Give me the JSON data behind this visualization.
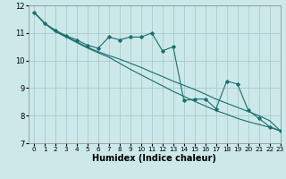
{
  "bg_color": "#cce8e8",
  "grid_color": "#aacccc",
  "line_color": "#1a6e6e",
  "xlabel": "Humidex (Indice chaleur)",
  "xlabel_fontsize": 7,
  "tick_fontsize": 6,
  "ylim": [
    7,
    12
  ],
  "xlim": [
    -0.5,
    23
  ],
  "yticks": [
    7,
    8,
    9,
    10,
    11,
    12
  ],
  "xticks": [
    0,
    1,
    2,
    3,
    4,
    5,
    6,
    7,
    8,
    9,
    10,
    11,
    12,
    13,
    14,
    15,
    16,
    17,
    18,
    19,
    20,
    21,
    22,
    23
  ],
  "series_jagged_x": [
    0,
    1,
    2,
    3,
    4,
    5,
    6,
    7,
    8,
    9,
    10,
    11,
    12,
    13,
    14,
    15,
    16,
    17,
    18,
    19,
    20,
    21,
    22,
    23
  ],
  "series_jagged_y": [
    11.75,
    11.35,
    11.1,
    10.9,
    10.75,
    10.55,
    10.45,
    10.85,
    10.75,
    10.85,
    10.85,
    11.0,
    10.35,
    10.5,
    8.55,
    8.6,
    8.6,
    8.25,
    9.25,
    9.15,
    8.2,
    7.9,
    7.6,
    7.45
  ],
  "series_diag1_x": [
    0,
    1,
    2,
    3,
    4,
    5,
    6,
    7,
    8,
    9,
    10,
    11,
    12,
    13,
    14,
    15,
    16,
    17,
    18,
    19,
    20,
    21,
    22,
    23
  ],
  "series_diag1_y": [
    11.75,
    11.35,
    11.05,
    10.88,
    10.68,
    10.48,
    10.32,
    10.18,
    10.05,
    9.9,
    9.75,
    9.58,
    9.42,
    9.25,
    9.1,
    8.95,
    8.78,
    8.6,
    8.45,
    8.3,
    8.15,
    8.0,
    7.82,
    7.45
  ],
  "series_diag2_x": [
    0,
    1,
    2,
    3,
    4,
    5,
    6,
    7,
    8,
    9,
    10,
    11,
    12,
    13,
    14,
    15,
    16,
    17,
    18,
    19,
    20,
    21,
    22,
    23
  ],
  "series_diag2_y": [
    11.75,
    11.35,
    11.05,
    10.85,
    10.65,
    10.45,
    10.28,
    10.12,
    9.9,
    9.68,
    9.48,
    9.28,
    9.08,
    8.88,
    8.7,
    8.52,
    8.35,
    8.18,
    8.05,
    7.9,
    7.78,
    7.68,
    7.58,
    7.45
  ]
}
